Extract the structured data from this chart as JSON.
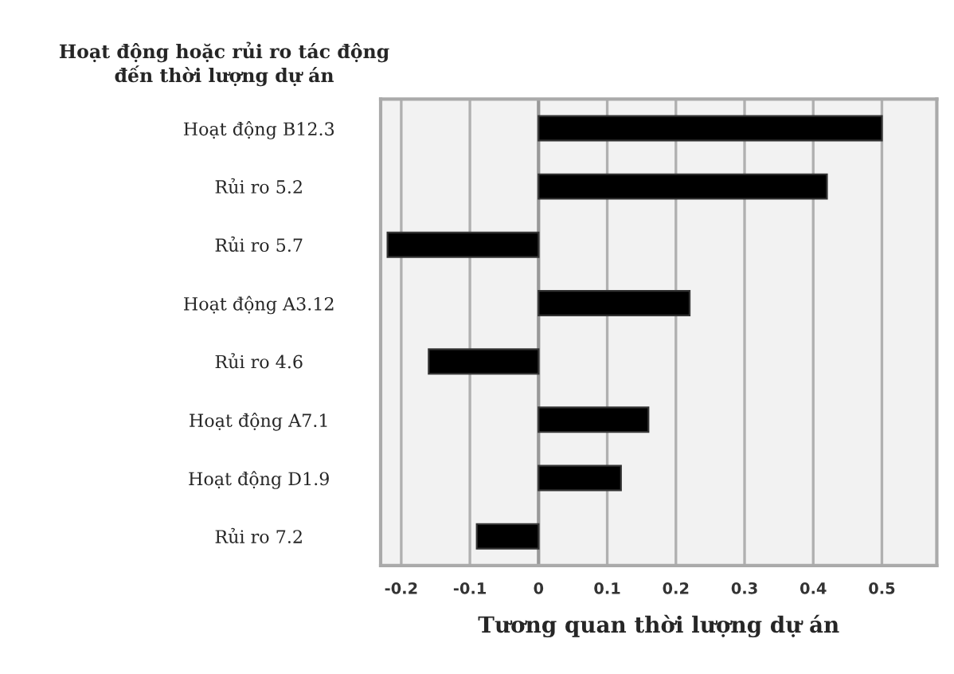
{
  "chart_data": {
    "type": "bar",
    "orientation": "horizontal",
    "ylabel": "Hoạt động hoặc rủi ro tác động\nđến thời lượng dự án",
    "xlabel": "Tương quan thời lượng dự án",
    "categories": [
      "Hoạt động B12.3",
      "Rủi ro 5.2",
      "Rủi ro 5.7",
      "Hoạt động A3.12",
      "Rủi ro 4.6",
      "Hoạt động A7.1",
      "Hoạt động D1.9",
      "Rủi ro 7.2"
    ],
    "values": [
      0.5,
      0.42,
      -0.22,
      0.22,
      -0.16,
      0.16,
      0.12,
      -0.09
    ],
    "color": "#000000",
    "xlim": [
      -0.23,
      0.58
    ],
    "xticks": [
      -0.2,
      -0.1,
      0,
      0.1,
      0.2,
      0.3,
      0.4,
      0.5
    ],
    "grid": "x"
  }
}
